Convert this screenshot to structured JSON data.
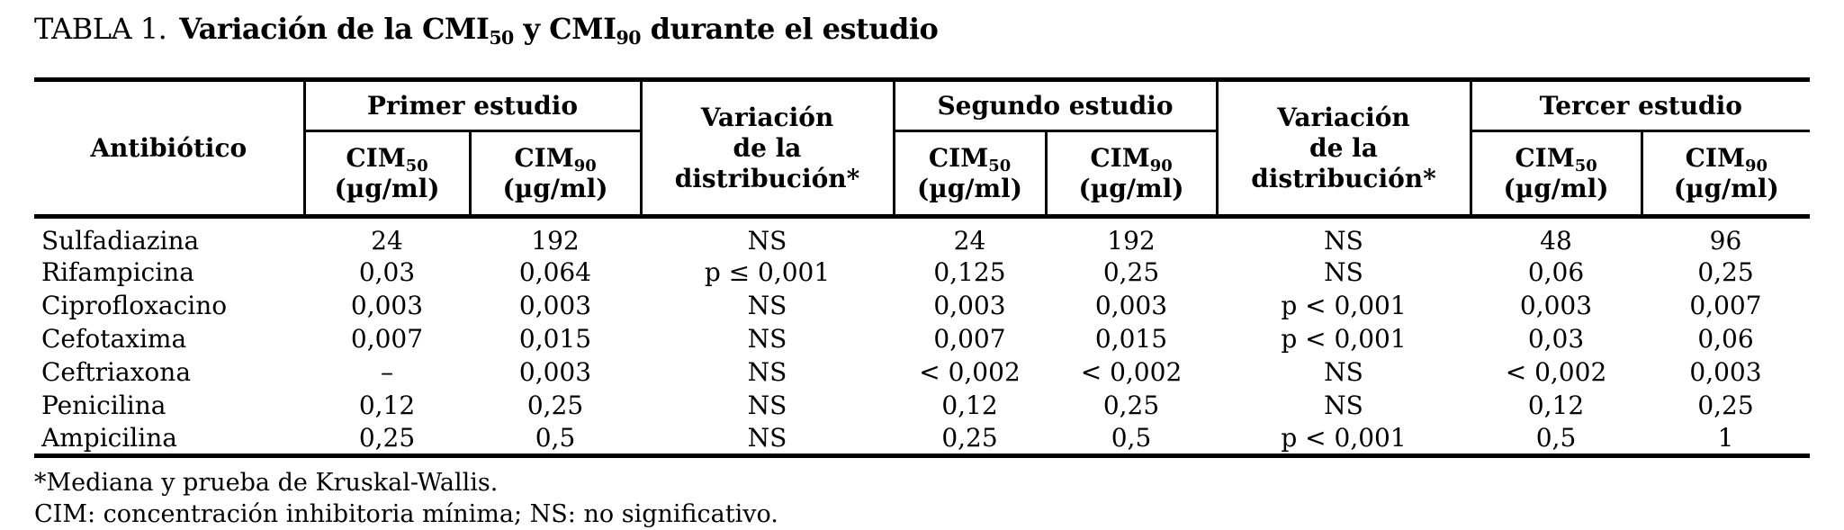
{
  "title": {
    "label": "TABLA 1.",
    "main_pre": "Variación de la CMI",
    "sub_50": "50",
    "main_mid": " y CMI",
    "sub_90": "90",
    "main_post": " durante el estudio"
  },
  "table": {
    "antibiotic_header": "Antibiótico",
    "group_headers": [
      {
        "label": "Primer estudio"
      },
      {
        "label": "Segundo estudio"
      },
      {
        "label": "Tercer estudio"
      }
    ],
    "variation_header": {
      "line1": "Variación",
      "line2": "de la",
      "line3": "distribución*"
    },
    "subheaders": {
      "cim50_base": "CIM",
      "cim50_sub": "50",
      "cim90_base": "CIM",
      "cim90_sub": "90",
      "unit": "(µg/ml)"
    },
    "rows": [
      {
        "antibiotic": "Sulfadiazina",
        "values": [
          "24",
          "192",
          "NS",
          "24",
          "192",
          "NS",
          "48",
          "96"
        ]
      },
      {
        "antibiotic": "Rifampicina",
        "values": [
          "0,03",
          "0,064",
          "p ≤ 0,001",
          "0,125",
          "0,25",
          "NS",
          "0,06",
          "0,25"
        ]
      },
      {
        "antibiotic": "Ciprofloxacino",
        "values": [
          "0,003",
          "0,003",
          "NS",
          "0,003",
          "0,003",
          "p < 0,001",
          "0,003",
          "0,007"
        ]
      },
      {
        "antibiotic": "Cefotaxima",
        "values": [
          "0,007",
          "0,015",
          "NS",
          "0,007",
          "0,015",
          "p < 0,001",
          "0,03",
          "0,06"
        ]
      },
      {
        "antibiotic": "Ceftriaxona",
        "values": [
          "–",
          "0,003",
          "NS",
          "< 0,002",
          "< 0,002",
          "NS",
          "< 0,002",
          "0,003"
        ]
      },
      {
        "antibiotic": "Penicilina",
        "values": [
          "0,12",
          "0,25",
          "NS",
          "0,12",
          "0,25",
          "NS",
          "0,12",
          "0,25"
        ]
      },
      {
        "antibiotic": "Ampicilina",
        "values": [
          "0,25",
          "0,5",
          "NS",
          "0,25",
          "0,5",
          "p < 0,001",
          "0,5",
          "1"
        ]
      }
    ]
  },
  "footnotes": {
    "line1": "*Mediana y prueba de Kruskal-Wallis.",
    "line2": "CIM: concentración inhibitoria mínima; NS: no significativo."
  }
}
